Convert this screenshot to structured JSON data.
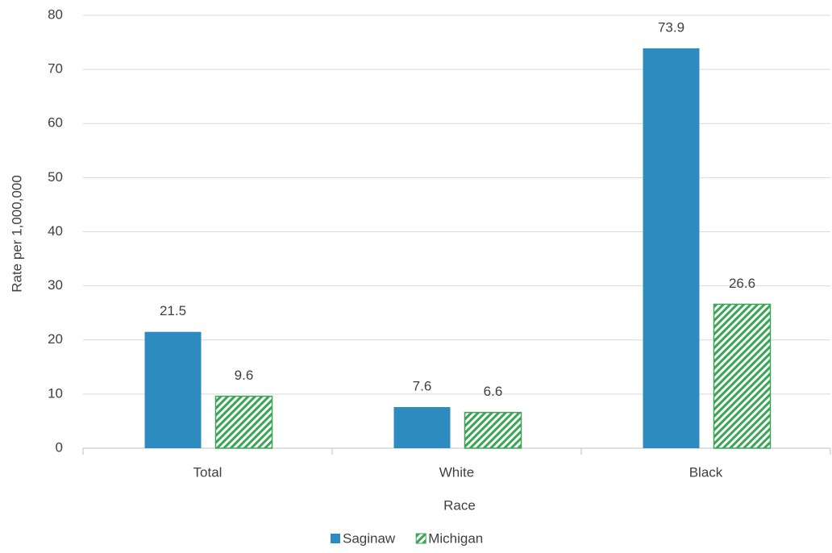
{
  "chart_data": {
    "type": "bar",
    "x_label": "Race",
    "y_label": "Rate per 1,000,000",
    "categories": [
      "Total",
      "White",
      "Black"
    ],
    "series": [
      {
        "name": "Saginaw",
        "color": "#2e8bc0",
        "values": [
          21.5,
          7.6,
          73.9
        ]
      },
      {
        "name": "Michigan",
        "color": "#3aa655",
        "values": [
          9.6,
          6.6,
          26.6
        ]
      }
    ],
    "ylim": [
      0,
      80
    ],
    "yticks": [
      0,
      10,
      20,
      30,
      40,
      50,
      60,
      70,
      80
    ],
    "grid": true,
    "legend": "bottom"
  }
}
